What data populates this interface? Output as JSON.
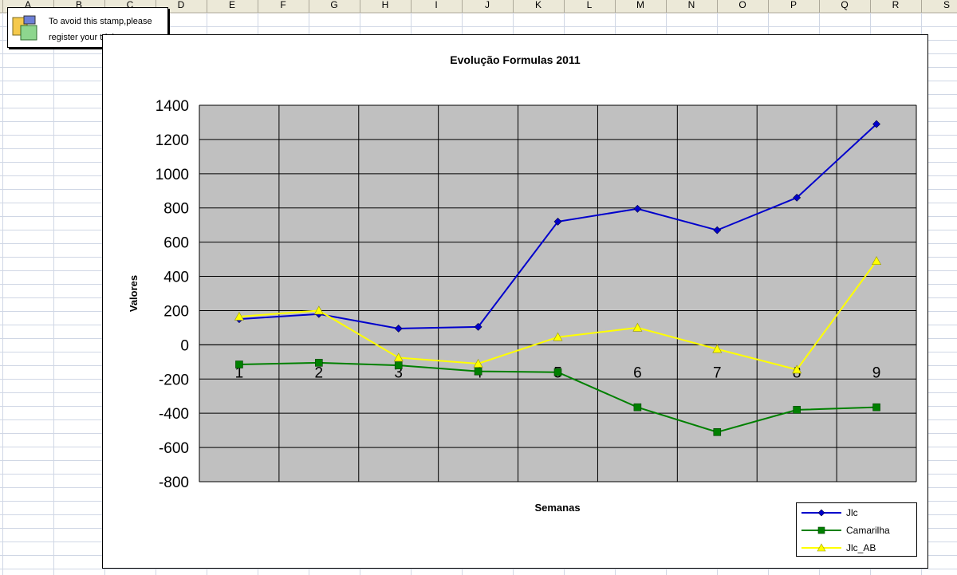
{
  "spreadsheet": {
    "columns": [
      "A",
      "B",
      "C",
      "D",
      "E",
      "F",
      "G",
      "H",
      "I",
      "J",
      "K",
      "L",
      "M",
      "N",
      "O",
      "P",
      "Q",
      "R",
      "S"
    ]
  },
  "stamp": {
    "line1": "To avoid this stamp,please",
    "line2": "register your trial copy"
  },
  "colors": {
    "plot_bg": "#C0C0C0",
    "Jlc": "#0000CC",
    "Camarilha": "#008000",
    "Jlc_AB": "#FFFF00"
  },
  "chart_data": {
    "type": "line",
    "title": "Evolução Formulas 2011",
    "xlabel": "Semanas",
    "ylabel": "Valores",
    "categories": [
      "1",
      "2",
      "3",
      "4",
      "5",
      "6",
      "7",
      "8",
      "9"
    ],
    "ylim": [
      -800,
      1400
    ],
    "yticks": [
      "1400",
      "1200",
      "1000",
      "800",
      "600",
      "400",
      "200",
      "0",
      "-200",
      "-400",
      "-600",
      "-800"
    ],
    "grid": true,
    "legend_position": "bottom-right",
    "series": [
      {
        "name": "Jlc",
        "marker": "diamond",
        "values": [
          150,
          180,
          95,
          105,
          720,
          795,
          670,
          860,
          1290
        ]
      },
      {
        "name": "Camarilha",
        "marker": "square",
        "values": [
          -115,
          -105,
          -120,
          -155,
          -160,
          -365,
          -510,
          -380,
          -365
        ]
      },
      {
        "name": "Jlc_AB",
        "marker": "triangle",
        "values": [
          165,
          200,
          -75,
          -110,
          45,
          100,
          -25,
          -145,
          490
        ]
      }
    ]
  }
}
